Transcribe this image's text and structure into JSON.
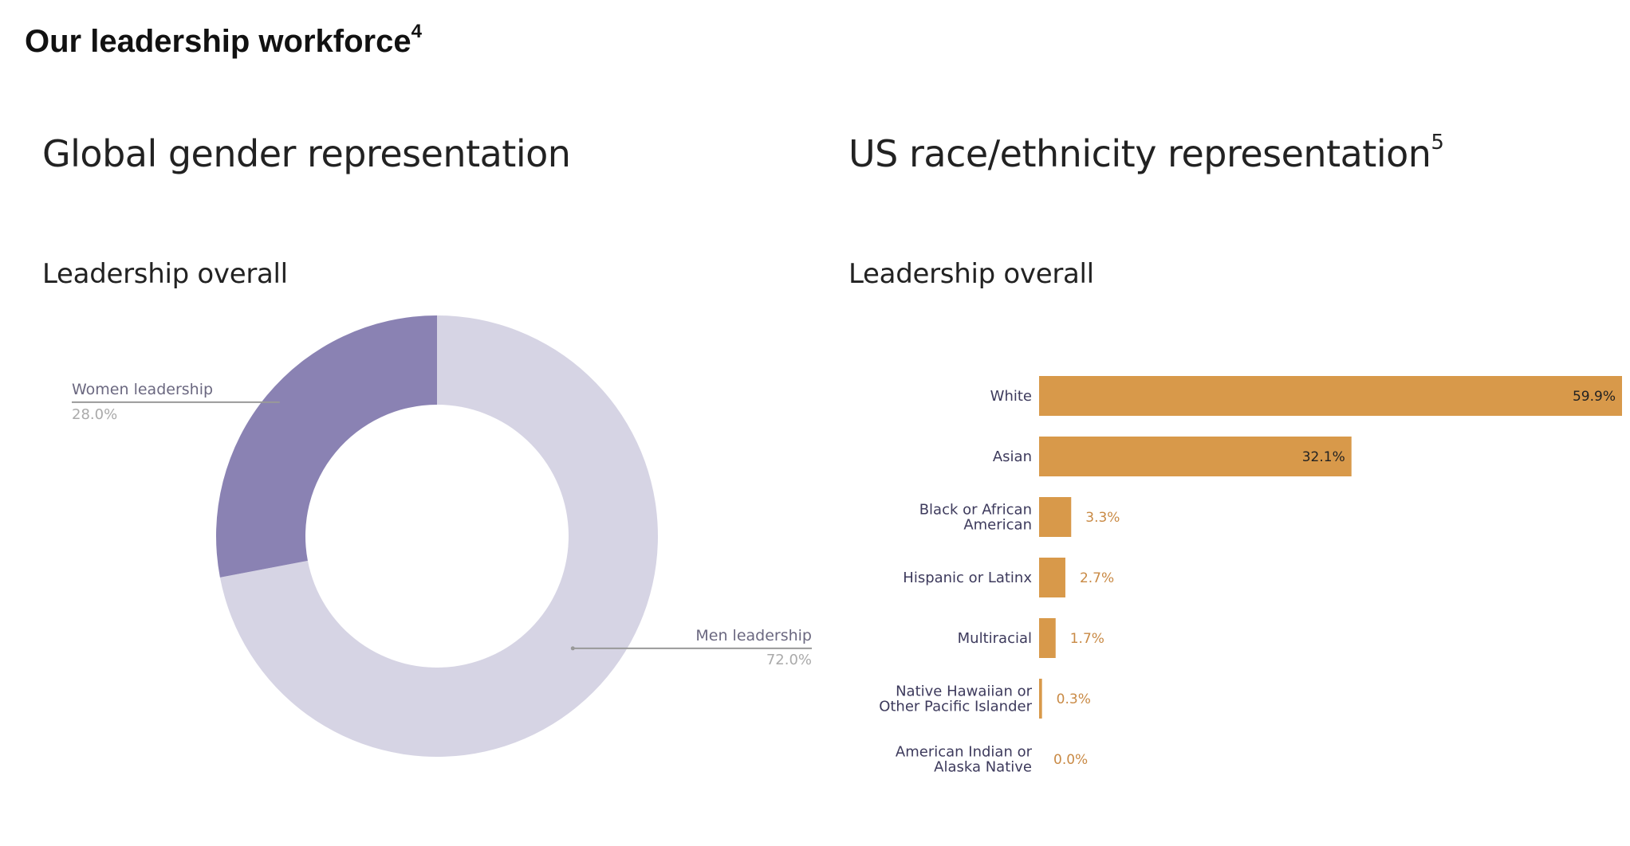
{
  "page": {
    "title": "Our leadership workforce",
    "title_footnote": "4"
  },
  "colors": {
    "women": "#8a82b3",
    "men": "#d6d4e4",
    "bar": "#d8994a",
    "bar_label_inside": "#222222",
    "bar_label_outside": "#c98a45",
    "category_label": "#3d3a5c",
    "pie_label": "#6b6880",
    "pie_value": "#aaaaaa"
  },
  "gender_section": {
    "title": "Global gender representation",
    "subtitle": "Leadership overall"
  },
  "race_section": {
    "title": "US race/ethnicity representation",
    "title_footnote": "5",
    "subtitle": "Leadership overall"
  },
  "chart_data": [
    {
      "type": "pie",
      "donut": true,
      "title": "Leadership overall",
      "slices": [
        {
          "label": "Men leadership",
          "value": 72.0,
          "value_label": "72.0%"
        },
        {
          "label": "Women leadership",
          "value": 28.0,
          "value_label": "28.0%"
        }
      ],
      "start_angle_deg": 0,
      "direction": "clockwise"
    },
    {
      "type": "bar",
      "orientation": "horizontal",
      "title": "Leadership overall",
      "categories": [
        "White",
        "Asian",
        "Black or African American",
        "Hispanic or Latinx",
        "Multiracial",
        "Native Hawaiian or Other Pacific Islander",
        "American Indian or Alaska Native"
      ],
      "category_lines": [
        [
          "White"
        ],
        [
          "Asian"
        ],
        [
          "Black or African",
          "American"
        ],
        [
          "Hispanic or Latinx"
        ],
        [
          "Multiracial"
        ],
        [
          "Native Hawaiian or",
          "Other Pacific Islander"
        ],
        [
          "American Indian or",
          "Alaska Native"
        ]
      ],
      "values": [
        59.9,
        32.1,
        3.3,
        2.7,
        1.7,
        0.3,
        0.0
      ],
      "value_labels": [
        "59.9%",
        "32.1%",
        "3.3%",
        "2.7%",
        "1.7%",
        "0.3%",
        "0.0%"
      ],
      "xlim": [
        0,
        59.9
      ],
      "grid": false
    }
  ]
}
